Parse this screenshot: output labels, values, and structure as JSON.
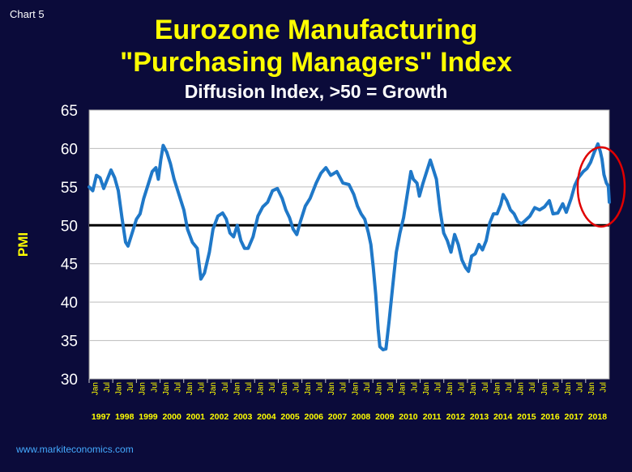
{
  "slide": {
    "chart_label": "Chart 5",
    "title_line1": "Eurozone Manufacturing",
    "title_line2": "\"Purchasing Managers\" Index",
    "subtitle": "Diffusion Index, >50 = Growth",
    "footer": "www.markiteconomics.com"
  },
  "colors": {
    "background": "#0b0b3a",
    "plot_area": "#ffffff",
    "line": "#1f78c8",
    "reference_line": "#000000",
    "highlight_circle": "#e00000",
    "title": "#ffff00",
    "axis_label": "#ffff00"
  },
  "chart_data": {
    "type": "line",
    "title": "Eurozone Manufacturing \"Purchasing Managers\" Index",
    "subtitle": "Diffusion Index, >50 = Growth",
    "ylabel": "PMI",
    "xlabel": "",
    "ylim": [
      30,
      65
    ],
    "yticks": [
      30,
      35,
      40,
      45,
      50,
      55,
      60,
      65
    ],
    "xlim": [
      1997.0,
      2018.42
    ],
    "year_labels": [
      "1997",
      "1998",
      "1999",
      "2000",
      "2001",
      "2002",
      "2003",
      "2004",
      "2005",
      "2006",
      "2007",
      "2008",
      "2009",
      "2010",
      "2011",
      "2012",
      "2013",
      "2014",
      "2015",
      "2016",
      "2017",
      "2018"
    ],
    "month_tick_labels": [
      "Jan",
      "Jul"
    ],
    "grid": true,
    "reference_line": 50,
    "highlight": "circle around 2017-2018",
    "series": [
      {
        "values": [
          [
            1997.0,
            55.0
          ],
          [
            1997.15,
            54.5
          ],
          [
            1997.3,
            56.5
          ],
          [
            1997.45,
            56.2
          ],
          [
            1997.6,
            54.8
          ],
          [
            1997.75,
            56.0
          ],
          [
            1997.9,
            57.2
          ],
          [
            1998.05,
            56.2
          ],
          [
            1998.2,
            54.5
          ],
          [
            1998.35,
            51.0
          ],
          [
            1998.5,
            47.8
          ],
          [
            1998.6,
            47.3
          ],
          [
            1998.75,
            48.8
          ],
          [
            1998.95,
            50.8
          ],
          [
            1999.1,
            51.5
          ],
          [
            1999.25,
            53.5
          ],
          [
            1999.45,
            55.5
          ],
          [
            1999.6,
            57.0
          ],
          [
            1999.75,
            57.5
          ],
          [
            1999.85,
            56.0
          ],
          [
            1999.95,
            58.5
          ],
          [
            2000.05,
            60.4
          ],
          [
            2000.2,
            59.5
          ],
          [
            2000.35,
            58.0
          ],
          [
            2000.5,
            56.0
          ],
          [
            2000.7,
            54.0
          ],
          [
            2000.9,
            52.0
          ],
          [
            2001.05,
            49.5
          ],
          [
            2001.25,
            47.8
          ],
          [
            2001.45,
            47.0
          ],
          [
            2001.6,
            43.0
          ],
          [
            2001.75,
            43.8
          ],
          [
            2001.95,
            46.5
          ],
          [
            2002.1,
            49.5
          ],
          [
            2002.3,
            51.2
          ],
          [
            2002.5,
            51.6
          ],
          [
            2002.65,
            50.8
          ],
          [
            2002.8,
            49.0
          ],
          [
            2002.95,
            48.5
          ],
          [
            2003.1,
            50.0
          ],
          [
            2003.25,
            48.0
          ],
          [
            2003.4,
            47.0
          ],
          [
            2003.55,
            47.0
          ],
          [
            2003.75,
            48.5
          ],
          [
            2003.95,
            51.2
          ],
          [
            2004.15,
            52.4
          ],
          [
            2004.35,
            53.0
          ],
          [
            2004.55,
            54.5
          ],
          [
            2004.75,
            54.8
          ],
          [
            2004.95,
            53.5
          ],
          [
            2005.1,
            52.0
          ],
          [
            2005.25,
            51.0
          ],
          [
            2005.4,
            49.5
          ],
          [
            2005.55,
            48.8
          ],
          [
            2005.7,
            50.5
          ],
          [
            2005.9,
            52.5
          ],
          [
            2006.1,
            53.5
          ],
          [
            2006.35,
            55.5
          ],
          [
            2006.55,
            56.8
          ],
          [
            2006.75,
            57.5
          ],
          [
            2006.95,
            56.5
          ],
          [
            2007.2,
            57.0
          ],
          [
            2007.45,
            55.5
          ],
          [
            2007.7,
            55.3
          ],
          [
            2007.9,
            54.0
          ],
          [
            2008.05,
            52.5
          ],
          [
            2008.2,
            51.5
          ],
          [
            2008.35,
            50.8
          ],
          [
            2008.5,
            49.0
          ],
          [
            2008.6,
            47.5
          ],
          [
            2008.7,
            44.5
          ],
          [
            2008.8,
            41.0
          ],
          [
            2008.9,
            36.5
          ],
          [
            2008.97,
            34.2
          ],
          [
            2009.1,
            33.8
          ],
          [
            2009.22,
            33.9
          ],
          [
            2009.35,
            37.5
          ],
          [
            2009.5,
            42.0
          ],
          [
            2009.65,
            46.5
          ],
          [
            2009.8,
            49.0
          ],
          [
            2009.95,
            51.0
          ],
          [
            2010.1,
            54.0
          ],
          [
            2010.25,
            57.0
          ],
          [
            2010.35,
            56.0
          ],
          [
            2010.5,
            55.5
          ],
          [
            2010.6,
            53.8
          ],
          [
            2010.75,
            55.5
          ],
          [
            2010.9,
            57.0
          ],
          [
            2011.05,
            58.5
          ],
          [
            2011.15,
            57.5
          ],
          [
            2011.3,
            56.0
          ],
          [
            2011.45,
            52.0
          ],
          [
            2011.6,
            49.0
          ],
          [
            2011.75,
            48.0
          ],
          [
            2011.9,
            46.5
          ],
          [
            2012.05,
            48.8
          ],
          [
            2012.2,
            47.5
          ],
          [
            2012.35,
            45.5
          ],
          [
            2012.5,
            44.5
          ],
          [
            2012.62,
            44.0
          ],
          [
            2012.75,
            46.0
          ],
          [
            2012.9,
            46.3
          ],
          [
            2013.05,
            47.5
          ],
          [
            2013.2,
            46.8
          ],
          [
            2013.35,
            48.0
          ],
          [
            2013.5,
            50.3
          ],
          [
            2013.65,
            51.5
          ],
          [
            2013.8,
            51.5
          ],
          [
            2013.95,
            52.7
          ],
          [
            2014.05,
            54.0
          ],
          [
            2014.2,
            53.2
          ],
          [
            2014.35,
            52.0
          ],
          [
            2014.5,
            51.5
          ],
          [
            2014.65,
            50.5
          ],
          [
            2014.8,
            50.2
          ],
          [
            2014.95,
            50.6
          ],
          [
            2015.15,
            51.2
          ],
          [
            2015.35,
            52.3
          ],
          [
            2015.55,
            52.0
          ],
          [
            2015.75,
            52.4
          ],
          [
            2015.95,
            53.2
          ],
          [
            2016.1,
            51.5
          ],
          [
            2016.3,
            51.6
          ],
          [
            2016.5,
            52.8
          ],
          [
            2016.65,
            51.7
          ],
          [
            2016.85,
            53.5
          ],
          [
            2017.0,
            55.2
          ],
          [
            2017.15,
            56.2
          ],
          [
            2017.35,
            57.0
          ],
          [
            2017.5,
            57.4
          ],
          [
            2017.65,
            58.2
          ],
          [
            2017.8,
            59.5
          ],
          [
            2017.95,
            60.6
          ],
          [
            2018.05,
            59.6
          ],
          [
            2018.12,
            58.6
          ],
          [
            2018.2,
            56.6
          ],
          [
            2018.3,
            55.5
          ],
          [
            2018.38,
            55.1
          ],
          [
            2018.42,
            53.0
          ]
        ]
      }
    ]
  }
}
